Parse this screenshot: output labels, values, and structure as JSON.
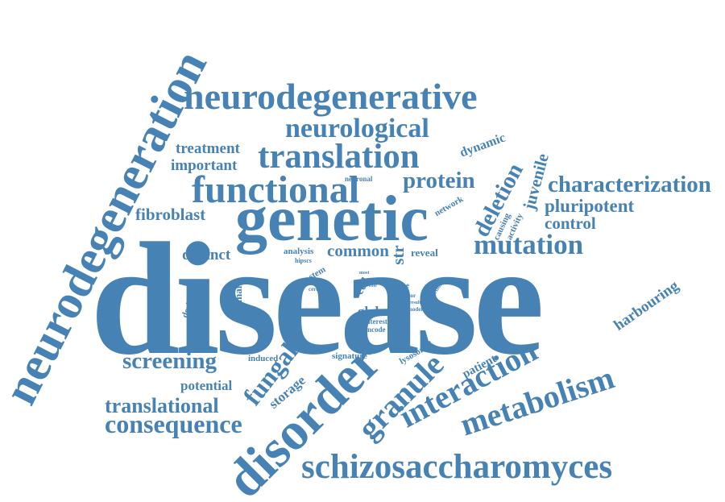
{
  "color": "#4682b4",
  "words": [
    "neurodegeneration",
    "neurodegenerative",
    "neurological",
    "translation",
    "treatment",
    "important",
    "dynamic",
    "functional",
    "neuronal",
    "protein",
    "juvenile",
    "characterization",
    "genetic",
    "network",
    "deletion",
    "causing",
    "activity",
    "pluripotent",
    "control",
    "fibroblast",
    "mutation",
    "distinct",
    "analysis",
    "hipscs",
    "common",
    "str",
    "reveal",
    "disease",
    "stem",
    "most",
    "role",
    "cell",
    "line",
    "minor",
    "result",
    "model",
    "function",
    "ceroid",
    "derived",
    "childhood",
    "human",
    "global",
    "interest",
    "encode",
    "pombe",
    "addition",
    "harbouring",
    "screening",
    "induced",
    "signature",
    "lysosomal",
    "patient",
    "interaction",
    "potential",
    "fungal",
    "disorder",
    "storage",
    "granule",
    "metabolism",
    "translational",
    "consequence",
    "schizosaccharomyces"
  ]
}
